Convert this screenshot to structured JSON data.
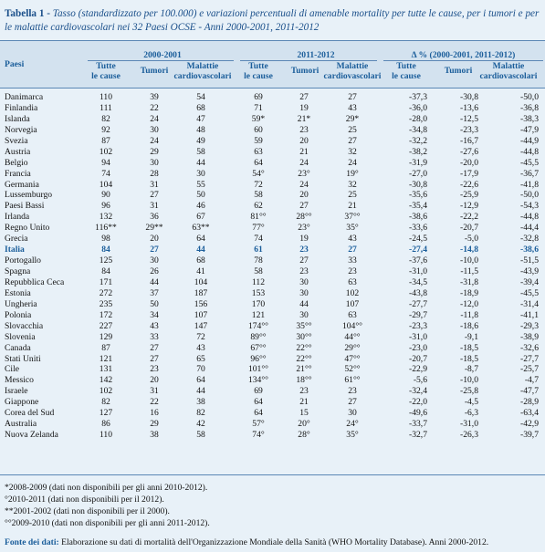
{
  "title": {
    "label": "Tabella 1 -",
    "text": "Tasso (standardizzato per 100.000) e variazioni percentuali di amenable mortality per tutte le cause, per i tumori e per le malattie cardiovascolari nei 32 Paesi OCSE - Anni 2000-2001, 2011-2012"
  },
  "header": {
    "paesi": "Paesi",
    "groups": [
      "2000-2001",
      "2011-2012",
      "Δ % (2000-2001, 2011-2012)"
    ],
    "sub_tutte": [
      "Tutte",
      "le cause"
    ],
    "sub_tumori": "Tumori",
    "sub_malattie": [
      "Malattie",
      "cardiovascolari"
    ]
  },
  "rows": [
    [
      "Danimarca",
      "110",
      "39",
      "54",
      "69",
      "27",
      "27",
      "-37,3",
      "-30,8",
      "-50,0"
    ],
    [
      "Finlandia",
      "111",
      "22",
      "68",
      "71",
      "19",
      "43",
      "-36,0",
      "-13,6",
      "-36,8"
    ],
    [
      "Islanda",
      "82",
      "24",
      "47",
      "59*",
      "21*",
      "29*",
      "-28,0",
      "-12,5",
      "-38,3"
    ],
    [
      "Norvegia",
      "92",
      "30",
      "48",
      "60",
      "23",
      "25",
      "-34,8",
      "-23,3",
      "-47,9"
    ],
    [
      "Svezia",
      "87",
      "24",
      "49",
      "59",
      "20",
      "27",
      "-32,2",
      "-16,7",
      "-44,9"
    ],
    [
      "Austria",
      "102",
      "29",
      "58",
      "63",
      "21",
      "32",
      "-38,2",
      "-27,6",
      "-44,8"
    ],
    [
      "Belgio",
      "94",
      "30",
      "44",
      "64",
      "24",
      "24",
      "-31,9",
      "-20,0",
      "-45,5"
    ],
    [
      "Francia",
      "74",
      "28",
      "30",
      "54°",
      "23°",
      "19°",
      "-27,0",
      "-17,9",
      "-36,7"
    ],
    [
      "Germania",
      "104",
      "31",
      "55",
      "72",
      "24",
      "32",
      "-30,8",
      "-22,6",
      "-41,8"
    ],
    [
      "Lussemburgo",
      "90",
      "27",
      "50",
      "58",
      "20",
      "25",
      "-35,6",
      "-25,9",
      "-50,0"
    ],
    [
      "Paesi Bassi",
      "96",
      "31",
      "46",
      "62",
      "27",
      "21",
      "-35,4",
      "-12,9",
      "-54,3"
    ],
    [
      "Irlanda",
      "132",
      "36",
      "67",
      "81°°",
      "28°°",
      "37°°",
      "-38,6",
      "-22,2",
      "-44,8"
    ],
    [
      "Regno Unito",
      "116**",
      "29**",
      "63**",
      "77°",
      "23°",
      "35°",
      "-33,6",
      "-20,7",
      "-44,4"
    ],
    [
      "Grecia",
      "98",
      "20",
      "64",
      "74",
      "19",
      "43",
      "-24,5",
      "-5,0",
      "-32,8"
    ],
    [
      "Italia",
      "84",
      "27",
      "44",
      "61",
      "23",
      "27",
      "-27,4",
      "-14,8",
      "-38,6"
    ],
    [
      "Portogallo",
      "125",
      "30",
      "68",
      "78",
      "27",
      "33",
      "-37,6",
      "-10,0",
      "-51,5"
    ],
    [
      "Spagna",
      "84",
      "26",
      "41",
      "58",
      "23",
      "23",
      "-31,0",
      "-11,5",
      "-43,9"
    ],
    [
      "Repubblica Ceca",
      "171",
      "44",
      "104",
      "112",
      "30",
      "63",
      "-34,5",
      "-31,8",
      "-39,4"
    ],
    [
      "Estonia",
      "272",
      "37",
      "187",
      "153",
      "30",
      "102",
      "-43,8",
      "-18,9",
      "-45,5"
    ],
    [
      "Ungheria",
      "235",
      "50",
      "156",
      "170",
      "44",
      "107",
      "-27,7",
      "-12,0",
      "-31,4"
    ],
    [
      "Polonia",
      "172",
      "34",
      "107",
      "121",
      "30",
      "63",
      "-29,7",
      "-11,8",
      "-41,1"
    ],
    [
      "Slovacchia",
      "227",
      "43",
      "147",
      "174°°",
      "35°°",
      "104°°",
      "-23,3",
      "-18,6",
      "-29,3"
    ],
    [
      "Slovenia",
      "129",
      "33",
      "72",
      "89°°",
      "30°°",
      "44°°",
      "-31,0",
      "-9,1",
      "-38,9"
    ],
    [
      "Canada",
      "87",
      "27",
      "43",
      "67°°",
      "22°°",
      "29°°",
      "-23,0",
      "-18,5",
      "-32,6"
    ],
    [
      "Stati Uniti",
      "121",
      "27",
      "65",
      "96°°",
      "22°°",
      "47°°",
      "-20,7",
      "-18,5",
      "-27,7"
    ],
    [
      "Cile",
      "131",
      "23",
      "70",
      "101°°",
      "21°°",
      "52°°",
      "-22,9",
      "-8,7",
      "-25,7"
    ],
    [
      "Messico",
      "142",
      "20",
      "64",
      "134°°",
      "18°°",
      "61°°",
      "-5,6",
      "-10,0",
      "-4,7"
    ],
    [
      "Israele",
      "102",
      "31",
      "44",
      "69",
      "23",
      "23",
      "-32,4",
      "-25,8",
      "-47,7"
    ],
    [
      "Giappone",
      "82",
      "22",
      "38",
      "64",
      "21",
      "27",
      "-22,0",
      "-4,5",
      "-28,9"
    ],
    [
      "Corea del Sud",
      "127",
      "16",
      "82",
      "64",
      "15",
      "30",
      "-49,6",
      "-6,3",
      "-63,4"
    ],
    [
      "Australia",
      "86",
      "29",
      "42",
      "57°",
      "20°",
      "24°",
      "-33,7",
      "-31,0",
      "-42,9"
    ],
    [
      "Nuova Zelanda",
      "110",
      "38",
      "58",
      "74°",
      "28°",
      "35°",
      "-32,7",
      "-26,3",
      "-39,7"
    ]
  ],
  "highlight_row": "Italia",
  "notes": [
    "*2008-2009 (dati non disponibili per gli anni 2010-2012).",
    "°2010-2011 (dati non disponibili per il 2012).",
    "**2001-2002 (dati non disponibili per il 2000).",
    "°°2009-2010 (dati non disponibili per gli anni 2011-2012)."
  ],
  "source": {
    "label": "Fonte dei dati:",
    "text": "Elaborazione su dati di mortalità dell'Organizzazione Mondiale della Sanità (WHO Mortality Database). Anni 2000-2012."
  },
  "colors": {
    "accent": "#1a5d9a",
    "background": "#e8f1f8",
    "header_bg": "#d3e2ef"
  }
}
